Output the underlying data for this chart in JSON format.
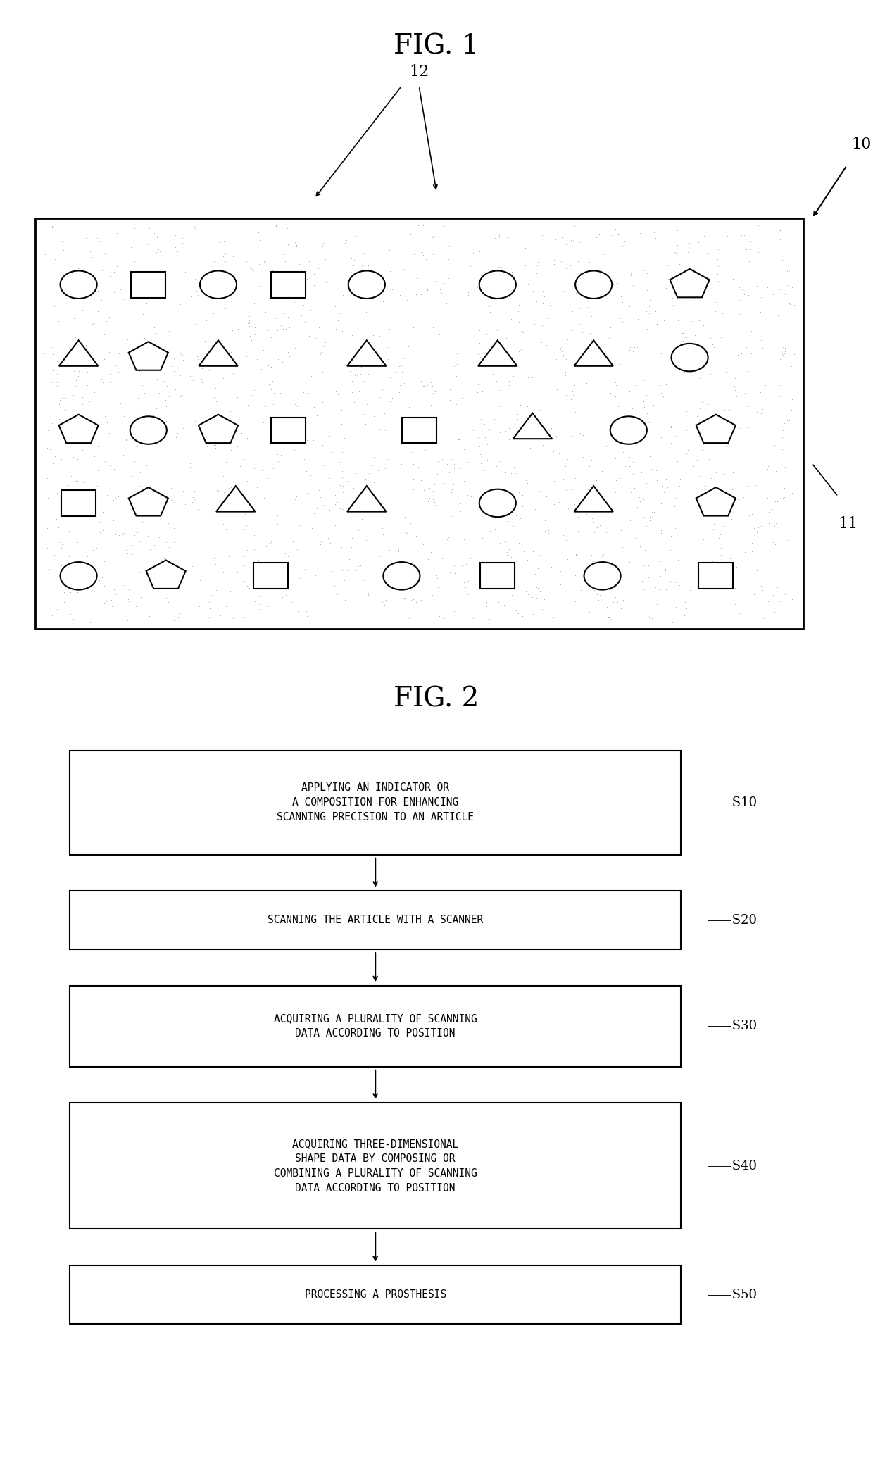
{
  "fig1_title": "FIG. 1",
  "fig2_title": "FIG. 2",
  "label_10": "10",
  "label_11": "11",
  "label_12": "12",
  "flowchart_steps": [
    {
      "label": "S10",
      "text": "APPLYING AN INDICATOR OR\nA COMPOSITION FOR ENHANCING\nSCANNING PRECISION TO AN ARTICLE",
      "lines": 3
    },
    {
      "label": "S20",
      "text": "SCANNING THE ARTICLE WITH A SCANNER",
      "lines": 1
    },
    {
      "label": "S30",
      "text": "ACQUIRING A PLURALITY OF SCANNING\nDATA ACCORDING TO POSITION",
      "lines": 2
    },
    {
      "label": "S40",
      "text": "ACQUIRING THREE-DIMENSIONAL\nSHAPE DATA BY COMPOSING OR\nCOMBINING A PLURALITY OF SCANNING\nDATA ACCORDING TO POSITION",
      "lines": 4
    },
    {
      "label": "S50",
      "text": "PROCESSING A PROSTHESIS",
      "lines": 1
    }
  ],
  "background_color": "#ffffff",
  "box_color": "#ffffff",
  "box_edge_color": "#000000",
  "arrow_color": "#000000",
  "text_color": "#000000",
  "stipple_color": "#cccccc"
}
